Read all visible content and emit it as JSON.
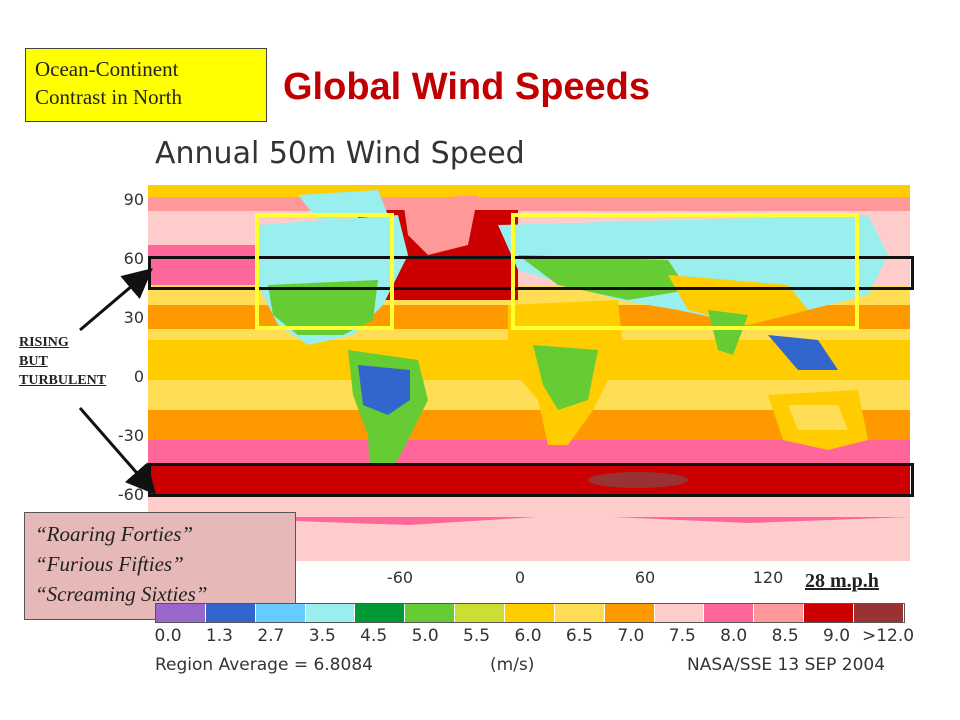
{
  "slide_title": "Global Wind Speeds",
  "map_title": "Annual 50m Wind Speed",
  "notes": {
    "ocean_continent": [
      "Ocean-Continent",
      "Contrast in North"
    ],
    "rising": [
      "RISING",
      "BUT",
      "TURBULENT"
    ],
    "roaring": [
      "“Roaring Forties”",
      "“Furious Fifties”",
      "“Screaming  Sixties”"
    ],
    "speed": "28 m.p.h"
  },
  "map": {
    "lat_ticks": [
      "90",
      "60",
      "30",
      "0",
      "-30",
      "-60"
    ],
    "lon_ticks": [
      "-60",
      "0",
      "60",
      "120"
    ]
  },
  "legend": {
    "labels": [
      "0.0",
      "1.3",
      "2.7",
      "3.5",
      "4.5",
      "5.0",
      "5.5",
      "6.0",
      "6.5",
      "7.0",
      "7.5",
      "8.0",
      "8.5",
      "9.0",
      ">12.0"
    ],
    "colors": [
      "#9966cc",
      "#3366cc",
      "#66ccff",
      "#99eeee",
      "#009933",
      "#66cc33",
      "#ccdd33",
      "#ffcc00",
      "#ffdd55",
      "#ff9900",
      "#ffcccc",
      "#ff6699",
      "#ff9999",
      "#cc0000",
      "#993333"
    ],
    "region_average": "Region Average = 6.8084",
    "units": "(m/s)",
    "credit": "NASA/SSE 13 SEP 2004"
  }
}
